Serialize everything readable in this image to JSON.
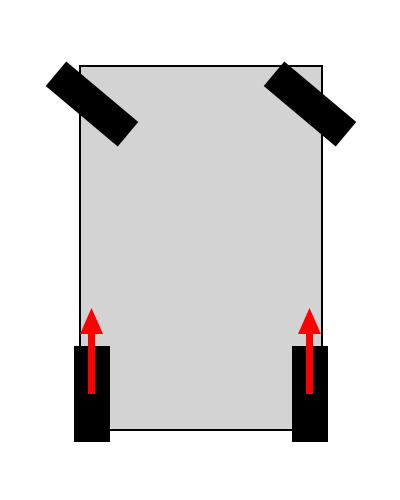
{
  "diagram": {
    "subject": "vehicle-wheel-layout",
    "colors": {
      "background": "#ffffff",
      "chassis_fill": "#d3d3d3",
      "chassis_stroke": "#000000",
      "wheel": "#000000",
      "arrow": "#ff0000"
    },
    "front_wheels": [
      {
        "name": "front-left-wheel",
        "orientation": "angled"
      },
      {
        "name": "front-right-wheel",
        "orientation": "angled"
      }
    ],
    "rear_wheels": [
      {
        "name": "rear-left-wheel",
        "orientation": "straight",
        "drive": true
      },
      {
        "name": "rear-right-wheel",
        "orientation": "straight",
        "drive": true
      }
    ],
    "drive_arrow_direction": "forward",
    "drive_arrow_icon": "arrow-up-icon"
  }
}
